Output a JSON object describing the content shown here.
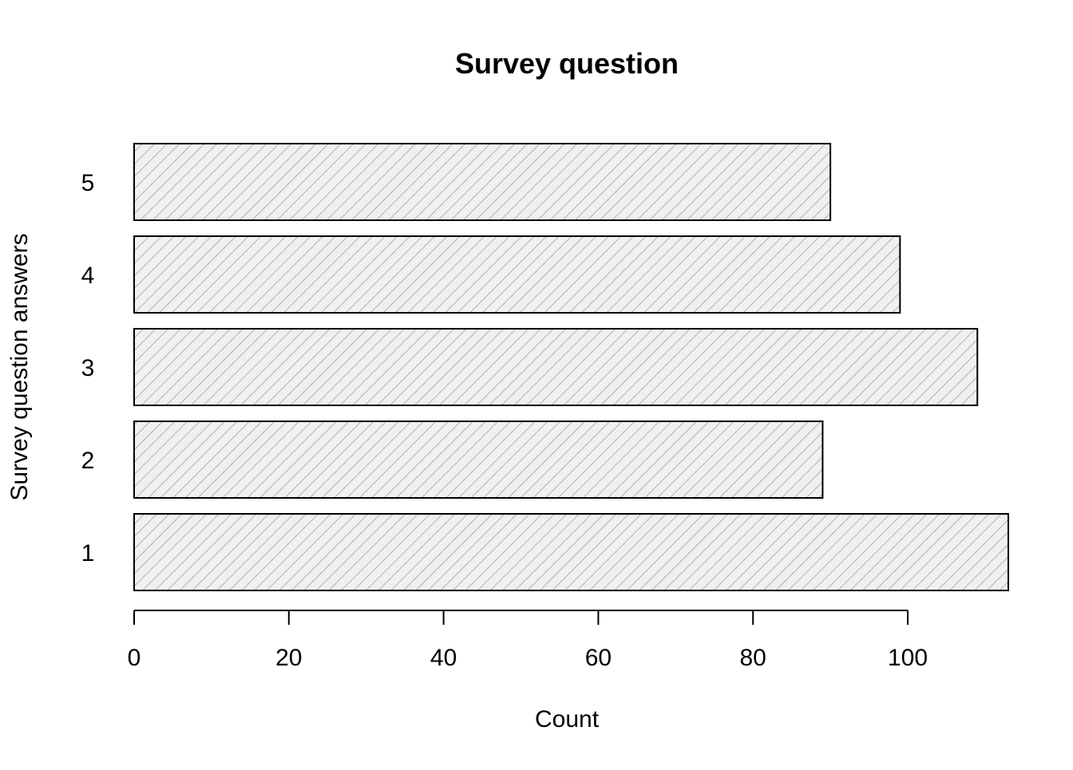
{
  "chart_data": {
    "type": "bar",
    "orientation": "horizontal",
    "title": "Survey question",
    "xlabel": "Count",
    "ylabel": "Survey question answers",
    "categories": [
      "1",
      "2",
      "3",
      "4",
      "5"
    ],
    "values": [
      113,
      89,
      109,
      99,
      90
    ],
    "xlim": [
      0,
      113
    ],
    "xticks": [
      0,
      20,
      40,
      60,
      80,
      100
    ],
    "bar_fill": "hatched",
    "colors": {
      "bar_fill": "#f0f0f0",
      "hatch": "#a0a0a0",
      "bar_border": "#000000"
    },
    "grid": false,
    "legend": "none"
  }
}
